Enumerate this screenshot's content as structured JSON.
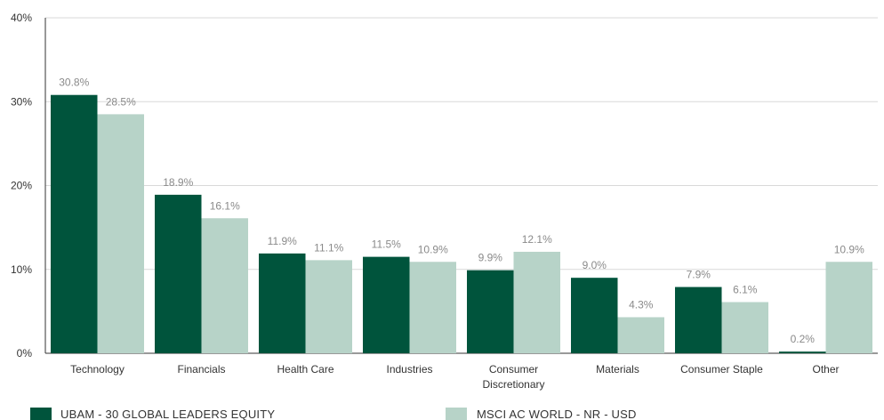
{
  "chart_data": {
    "type": "bar",
    "categories": [
      "Technology",
      "Financials",
      "Health Care",
      "Industries",
      "Consumer Discretionary",
      "Materials",
      "Consumer Staple",
      "Other"
    ],
    "category_lines": [
      [
        "Technology"
      ],
      [
        "Financials"
      ],
      [
        "Health Care"
      ],
      [
        "Industries"
      ],
      [
        "Consumer",
        "Discretionary"
      ],
      [
        "Materials"
      ],
      [
        "Consumer Staple"
      ],
      [
        "Other"
      ]
    ],
    "series": [
      {
        "name": "UBAM - 30 GLOBAL LEADERS EQUITY",
        "values": [
          30.8,
          18.9,
          11.9,
          11.5,
          9.9,
          9.0,
          7.9,
          0.2
        ],
        "labels": [
          "30.8%",
          "18.9%",
          "11.9%",
          "11.5%",
          "9.9%",
          "9.0%",
          "7.9%",
          "0.2%"
        ],
        "color": "#00543c"
      },
      {
        "name": "MSCI AC WORLD - NR - USD",
        "values": [
          28.5,
          16.1,
          11.1,
          10.9,
          12.1,
          4.3,
          6.1,
          10.9
        ],
        "labels": [
          "28.5%",
          "16.1%",
          "11.1%",
          "10.9%",
          "12.1%",
          "4.3%",
          "6.1%",
          "10.9%"
        ],
        "color": "#b7d3c8"
      }
    ],
    "yticks": [
      0,
      10,
      20,
      30,
      40
    ],
    "ytick_labels": [
      "0%",
      "10%",
      "20%",
      "30%",
      "40%"
    ],
    "ylim": [
      0,
      40
    ],
    "grid": true,
    "legend": "bottom-left",
    "title": "",
    "xlabel": "",
    "ylabel": "",
    "colors": {
      "grid": "#d9d9d9",
      "axis": "#333333"
    }
  }
}
